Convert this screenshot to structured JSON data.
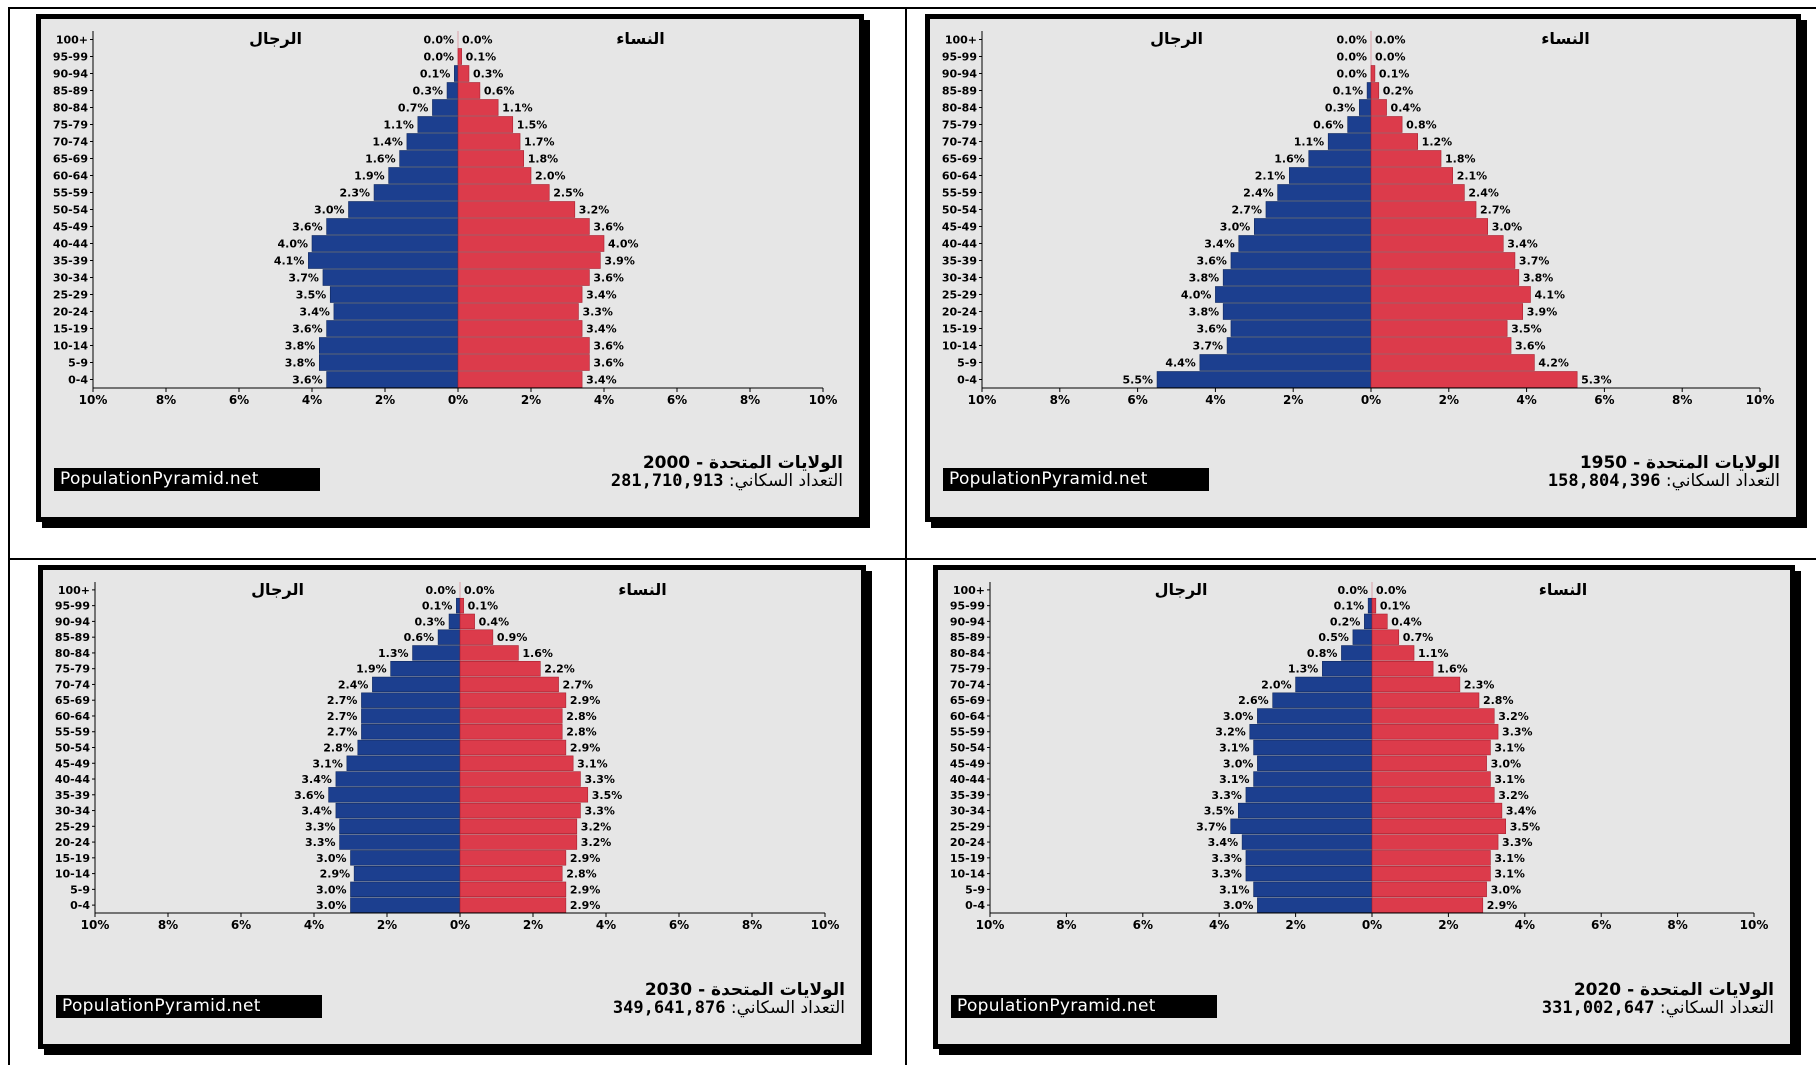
{
  "labels": {
    "men": "الرجال",
    "women": "النساء",
    "brand": "PopulationPyramid.net",
    "country": "الولايات المتحدة",
    "dash": "-",
    "population_label": "التعداد السكاني:"
  },
  "colors": {
    "male": "#1c3f8f",
    "female": "#dc3b4b",
    "panel_bg": "#e6e6e6"
  },
  "chart_data": [
    {
      "type": "bar",
      "position": "top-left",
      "year": "2000",
      "population": "281,710,913",
      "age_groups": [
        "100+",
        "95-99",
        "90-94",
        "85-89",
        "80-84",
        "75-79",
        "70-74",
        "65-69",
        "60-64",
        "55-59",
        "50-54",
        "45-49",
        "40-44",
        "35-39",
        "30-34",
        "25-29",
        "20-24",
        "15-19",
        "10-14",
        "5-9",
        "0-4"
      ],
      "series": [
        {
          "name": "الرجال",
          "values": [
            0.0,
            0.0,
            0.1,
            0.3,
            0.7,
            1.1,
            1.4,
            1.6,
            1.9,
            2.3,
            3.0,
            3.6,
            4.0,
            4.1,
            3.7,
            3.5,
            3.4,
            3.6,
            3.8,
            3.8,
            3.6
          ]
        },
        {
          "name": "النساء",
          "values": [
            0.0,
            0.1,
            0.3,
            0.6,
            1.1,
            1.5,
            1.7,
            1.8,
            2.0,
            2.5,
            3.2,
            3.6,
            4.0,
            3.9,
            3.6,
            3.4,
            3.3,
            3.4,
            3.6,
            3.6,
            3.4
          ]
        }
      ],
      "x_ticks": [
        "10%",
        "8%",
        "6%",
        "4%",
        "2%",
        "0%",
        "2%",
        "4%",
        "6%",
        "8%",
        "10%"
      ],
      "xlim": [
        -10,
        10
      ]
    },
    {
      "type": "bar",
      "position": "top-right",
      "year": "1950",
      "population": "158,804,396",
      "age_groups": [
        "100+",
        "95-99",
        "90-94",
        "85-89",
        "80-84",
        "75-79",
        "70-74",
        "65-69",
        "60-64",
        "55-59",
        "50-54",
        "45-49",
        "40-44",
        "35-39",
        "30-34",
        "25-29",
        "20-24",
        "15-19",
        "10-14",
        "5-9",
        "0-4"
      ],
      "series": [
        {
          "name": "الرجال",
          "values": [
            0.0,
            0.0,
            0.0,
            0.1,
            0.3,
            0.6,
            1.1,
            1.6,
            2.1,
            2.4,
            2.7,
            3.0,
            3.4,
            3.6,
            3.8,
            4.0,
            3.8,
            3.6,
            3.7,
            4.4,
            5.5
          ]
        },
        {
          "name": "النساء",
          "values": [
            0.0,
            0.0,
            0.1,
            0.2,
            0.4,
            0.8,
            1.2,
            1.8,
            2.1,
            2.4,
            2.7,
            3.0,
            3.4,
            3.7,
            3.8,
            4.1,
            3.9,
            3.5,
            3.6,
            4.2,
            5.3
          ]
        }
      ],
      "x_ticks": [
        "10%",
        "8%",
        "6%",
        "4%",
        "2%",
        "0%",
        "2%",
        "4%",
        "6%",
        "8%",
        "10%"
      ],
      "xlim": [
        -10,
        10
      ]
    },
    {
      "type": "bar",
      "position": "bottom-left",
      "year": "2030",
      "population": "349,641,876",
      "age_groups": [
        "100+",
        "95-99",
        "90-94",
        "85-89",
        "80-84",
        "75-79",
        "70-74",
        "65-69",
        "60-64",
        "55-59",
        "50-54",
        "45-49",
        "40-44",
        "35-39",
        "30-34",
        "25-29",
        "20-24",
        "15-19",
        "10-14",
        "5-9",
        "0-4"
      ],
      "series": [
        {
          "name": "الرجال",
          "values": [
            0.0,
            0.1,
            0.3,
            0.6,
            1.3,
            1.9,
            2.4,
            2.7,
            2.7,
            2.7,
            2.8,
            3.1,
            3.4,
            3.6,
            3.4,
            3.3,
            3.3,
            3.0,
            2.9,
            3.0,
            3.0
          ]
        },
        {
          "name": "النساء",
          "values": [
            0.0,
            0.1,
            0.4,
            0.9,
            1.6,
            2.2,
            2.7,
            2.9,
            2.8,
            2.8,
            2.9,
            3.1,
            3.3,
            3.5,
            3.3,
            3.2,
            3.2,
            2.9,
            2.8,
            2.9,
            2.9
          ]
        }
      ],
      "x_ticks": [
        "10%",
        "8%",
        "6%",
        "4%",
        "2%",
        "0%",
        "2%",
        "4%",
        "6%",
        "8%",
        "10%"
      ],
      "xlim": [
        -10,
        10
      ]
    },
    {
      "type": "bar",
      "position": "bottom-right",
      "year": "2020",
      "population": "331,002,647",
      "age_groups": [
        "100+",
        "95-99",
        "90-94",
        "85-89",
        "80-84",
        "75-79",
        "70-74",
        "65-69",
        "60-64",
        "55-59",
        "50-54",
        "45-49",
        "40-44",
        "35-39",
        "30-34",
        "25-29",
        "20-24",
        "15-19",
        "10-14",
        "5-9",
        "0-4"
      ],
      "series": [
        {
          "name": "الرجال",
          "values": [
            0.0,
            0.1,
            0.2,
            0.5,
            0.8,
            1.3,
            2.0,
            2.6,
            3.0,
            3.2,
            3.1,
            3.0,
            3.1,
            3.3,
            3.5,
            3.7,
            3.4,
            3.3,
            3.3,
            3.1,
            3.0
          ]
        },
        {
          "name": "النساء",
          "values": [
            0.0,
            0.1,
            0.4,
            0.7,
            1.1,
            1.6,
            2.3,
            2.8,
            3.2,
            3.3,
            3.1,
            3.0,
            3.1,
            3.2,
            3.4,
            3.5,
            3.3,
            3.1,
            3.1,
            3.0,
            2.9
          ]
        }
      ],
      "x_ticks": [
        "10%",
        "8%",
        "6%",
        "4%",
        "2%",
        "0%",
        "2%",
        "4%",
        "6%",
        "8%",
        "10%"
      ],
      "xlim": [
        -10,
        10
      ]
    }
  ]
}
